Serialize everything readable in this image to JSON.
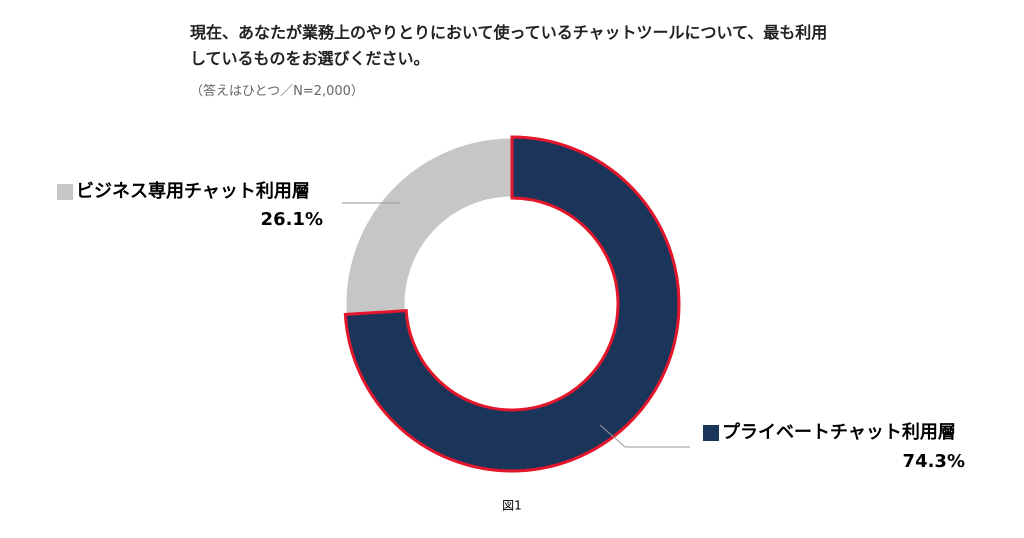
{
  "chart_data": {
    "type": "pie",
    "title": "現在、あなたが業務上のやりとりにおいて使っているチャットツールについて、最も利用しているものをお選びください。",
    "subtitle": "（答えはひとつ／N=2,000）",
    "caption": "図1",
    "categories": [
      "プライベートチャット利用層",
      "ビジネス専用チャット利用層"
    ],
    "values": [
      74.3,
      26.1
    ],
    "value_labels": [
      "74.3%",
      "26.1%"
    ],
    "colors": [
      "#1b3459",
      "#c6c6c6"
    ],
    "edgecolors": [
      "#e3172c",
      "#ffffff"
    ],
    "donut": true
  }
}
